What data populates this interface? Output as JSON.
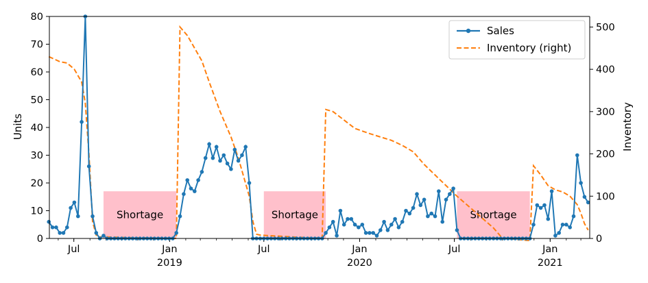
{
  "chart_data": {
    "type": "line",
    "x_axis": {
      "ticks": [
        {
          "date": "2018-07-01",
          "label": "Jul"
        },
        {
          "date": "2019-01-01",
          "label": "Jan",
          "year": "2019"
        },
        {
          "date": "2019-07-01",
          "label": "Jul"
        },
        {
          "date": "2020-01-01",
          "label": "Jan",
          "year": "2020"
        },
        {
          "date": "2020-07-01",
          "label": "Jul"
        },
        {
          "date": "2021-01-01",
          "label": "Jan",
          "year": "2021"
        }
      ],
      "year_labels": [
        "2019",
        "2020",
        "2021"
      ],
      "range": [
        "2018-05-15",
        "2021-03-01"
      ]
    },
    "y_left": {
      "label": "Units",
      "ticks": [
        0,
        10,
        20,
        30,
        40,
        50,
        60,
        70,
        80
      ],
      "ylim": [
        0,
        80
      ]
    },
    "y_right": {
      "label": "Inventory",
      "ticks": [
        0,
        100,
        200,
        300,
        400,
        500
      ],
      "ylim": [
        0,
        525
      ]
    },
    "legend": {
      "placement": "top-right",
      "entries": [
        "Sales",
        "Inventory (right)"
      ]
    },
    "colors": {
      "sales": "#1f77b4",
      "inventory": "#ff7f0e",
      "shortage": "#ffc0cb",
      "shortage_text": "#e00000"
    },
    "shortage_label": "Shortage",
    "shortage_periods": [
      {
        "start": "2018-08-27",
        "end": "2019-01-14",
        "value": 17
      },
      {
        "start": "2019-07-01",
        "end": "2019-10-28",
        "value": 17
      },
      {
        "start": "2020-07-06",
        "end": "2020-11-23",
        "value": 17
      }
    ],
    "series": [
      {
        "name": "Sales",
        "style": "solid-markers",
        "points": [
          [
            "2018-05-14",
            6
          ],
          [
            "2018-05-21",
            4
          ],
          [
            "2018-05-28",
            4
          ],
          [
            "2018-06-04",
            2
          ],
          [
            "2018-06-11",
            2
          ],
          [
            "2018-06-18",
            4
          ],
          [
            "2018-06-25",
            11
          ],
          [
            "2018-07-02",
            13
          ],
          [
            "2018-07-09",
            8
          ],
          [
            "2018-07-16",
            42
          ],
          [
            "2018-07-23",
            80
          ],
          [
            "2018-07-30",
            26
          ],
          [
            "2018-08-06",
            8
          ],
          [
            "2018-08-13",
            2
          ],
          [
            "2018-08-20",
            0
          ],
          [
            "2018-08-27",
            1
          ],
          [
            "2018-09-03",
            0
          ],
          [
            "2018-09-10",
            0
          ],
          [
            "2018-09-17",
            0
          ],
          [
            "2018-09-24",
            0
          ],
          [
            "2018-10-01",
            0
          ],
          [
            "2018-10-08",
            0
          ],
          [
            "2018-10-15",
            0
          ],
          [
            "2018-10-22",
            0
          ],
          [
            "2018-10-29",
            0
          ],
          [
            "2018-11-05",
            0
          ],
          [
            "2018-11-12",
            0
          ],
          [
            "2018-11-19",
            0
          ],
          [
            "2018-11-26",
            0
          ],
          [
            "2018-12-03",
            0
          ],
          [
            "2018-12-10",
            0
          ],
          [
            "2018-12-17",
            0
          ],
          [
            "2018-12-24",
            0
          ],
          [
            "2018-12-31",
            0
          ],
          [
            "2019-01-07",
            0
          ],
          [
            "2019-01-14",
            2
          ],
          [
            "2019-01-21",
            8
          ],
          [
            "2019-01-28",
            16
          ],
          [
            "2019-02-04",
            21
          ],
          [
            "2019-02-11",
            18
          ],
          [
            "2019-02-18",
            17
          ],
          [
            "2019-02-25",
            21
          ],
          [
            "2019-03-04",
            24
          ],
          [
            "2019-03-11",
            29
          ],
          [
            "2019-03-18",
            34
          ],
          [
            "2019-03-25",
            29
          ],
          [
            "2019-04-01",
            33
          ],
          [
            "2019-04-08",
            28
          ],
          [
            "2019-04-15",
            30
          ],
          [
            "2019-04-22",
            27
          ],
          [
            "2019-04-29",
            25
          ],
          [
            "2019-05-06",
            32
          ],
          [
            "2019-05-13",
            28
          ],
          [
            "2019-05-20",
            30
          ],
          [
            "2019-05-27",
            33
          ],
          [
            "2019-06-03",
            20
          ],
          [
            "2019-06-10",
            0
          ],
          [
            "2019-06-17",
            0
          ],
          [
            "2019-06-24",
            0
          ],
          [
            "2019-07-01",
            0
          ],
          [
            "2019-07-08",
            0
          ],
          [
            "2019-07-15",
            0
          ],
          [
            "2019-07-22",
            0
          ],
          [
            "2019-07-29",
            0
          ],
          [
            "2019-08-05",
            0
          ],
          [
            "2019-08-12",
            0
          ],
          [
            "2019-08-19",
            0
          ],
          [
            "2019-08-26",
            0
          ],
          [
            "2019-09-02",
            0
          ],
          [
            "2019-09-09",
            0
          ],
          [
            "2019-09-16",
            0
          ],
          [
            "2019-09-23",
            0
          ],
          [
            "2019-09-30",
            0
          ],
          [
            "2019-10-07",
            0
          ],
          [
            "2019-10-14",
            0
          ],
          [
            "2019-10-21",
            0
          ],
          [
            "2019-10-28",
            2
          ],
          [
            "2019-11-04",
            4
          ],
          [
            "2019-11-11",
            6
          ],
          [
            "2019-11-18",
            1
          ],
          [
            "2019-11-25",
            10
          ],
          [
            "2019-12-02",
            5
          ],
          [
            "2019-12-09",
            7
          ],
          [
            "2019-12-16",
            7
          ],
          [
            "2019-12-23",
            5
          ],
          [
            "2019-12-30",
            4
          ],
          [
            "2020-01-06",
            5
          ],
          [
            "2020-01-13",
            2
          ],
          [
            "2020-01-20",
            2
          ],
          [
            "2020-01-27",
            2
          ],
          [
            "2020-02-03",
            1
          ],
          [
            "2020-02-10",
            3
          ],
          [
            "2020-02-17",
            6
          ],
          [
            "2020-02-24",
            3
          ],
          [
            "2020-03-02",
            5
          ],
          [
            "2020-03-09",
            7
          ],
          [
            "2020-03-16",
            4
          ],
          [
            "2020-03-23",
            6
          ],
          [
            "2020-03-30",
            10
          ],
          [
            "2020-04-06",
            9
          ],
          [
            "2020-04-13",
            11
          ],
          [
            "2020-04-20",
            16
          ],
          [
            "2020-04-27",
            12
          ],
          [
            "2020-05-04",
            14
          ],
          [
            "2020-05-11",
            8
          ],
          [
            "2020-05-18",
            9
          ],
          [
            "2020-05-25",
            8
          ],
          [
            "2020-06-01",
            17
          ],
          [
            "2020-06-08",
            6
          ],
          [
            "2020-06-15",
            14
          ],
          [
            "2020-06-22",
            16
          ],
          [
            "2020-06-29",
            18
          ],
          [
            "2020-07-06",
            3
          ],
          [
            "2020-07-13",
            0
          ],
          [
            "2020-07-20",
            0
          ],
          [
            "2020-07-27",
            0
          ],
          [
            "2020-08-03",
            0
          ],
          [
            "2020-08-10",
            0
          ],
          [
            "2020-08-17",
            0
          ],
          [
            "2020-08-24",
            0
          ],
          [
            "2020-08-31",
            0
          ],
          [
            "2020-09-07",
            0
          ],
          [
            "2020-09-14",
            0
          ],
          [
            "2020-09-21",
            0
          ],
          [
            "2020-09-28",
            0
          ],
          [
            "2020-10-05",
            0
          ],
          [
            "2020-10-12",
            0
          ],
          [
            "2020-10-19",
            0
          ],
          [
            "2020-10-26",
            0
          ],
          [
            "2020-11-02",
            0
          ],
          [
            "2020-11-09",
            0
          ],
          [
            "2020-11-16",
            0
          ],
          [
            "2020-11-23",
            0
          ],
          [
            "2020-11-30",
            5
          ],
          [
            "2020-12-07",
            12
          ],
          [
            "2020-12-14",
            11
          ],
          [
            "2020-12-21",
            12
          ],
          [
            "2020-12-28",
            7
          ],
          [
            "2021-01-04",
            17
          ],
          [
            "2021-01-11",
            1
          ],
          [
            "2021-01-18",
            2
          ],
          [
            "2021-01-25",
            5
          ],
          [
            "2021-02-01",
            5
          ],
          [
            "2021-02-08",
            4
          ],
          [
            "2021-02-15",
            8
          ],
          [
            "2021-02-22",
            30
          ],
          [
            "2021-03-01",
            20
          ],
          [
            "2021-03-08",
            15
          ],
          [
            "2021-03-15",
            13
          ]
        ]
      },
      {
        "name": "Inventory (right)",
        "style": "dashed",
        "axis": "right",
        "points": [
          [
            "2018-05-14",
            430
          ],
          [
            "2018-06-04",
            418
          ],
          [
            "2018-06-18",
            415
          ],
          [
            "2018-07-02",
            400
          ],
          [
            "2018-07-16",
            370
          ],
          [
            "2018-07-23",
            320
          ],
          [
            "2018-07-30",
            200
          ],
          [
            "2018-08-06",
            40
          ],
          [
            "2018-08-13",
            8
          ],
          [
            "2018-08-20",
            4
          ],
          [
            "2018-09-17",
            3
          ],
          [
            "2018-10-15",
            2
          ],
          [
            "2018-12-17",
            1
          ],
          [
            "2019-01-14",
            0
          ],
          [
            "2019-01-21",
            500
          ],
          [
            "2019-02-04",
            480
          ],
          [
            "2019-02-18",
            450
          ],
          [
            "2019-03-04",
            420
          ],
          [
            "2019-03-18",
            370
          ],
          [
            "2019-04-08",
            300
          ],
          [
            "2019-04-29",
            240
          ],
          [
            "2019-05-13",
            190
          ],
          [
            "2019-05-27",
            130
          ],
          [
            "2019-06-03",
            100
          ],
          [
            "2019-06-10",
            40
          ],
          [
            "2019-06-17",
            10
          ],
          [
            "2019-06-24",
            8
          ],
          [
            "2019-07-08",
            7
          ],
          [
            "2019-08-05",
            5
          ],
          [
            "2019-09-02",
            3
          ],
          [
            "2019-10-21",
            1
          ],
          [
            "2019-10-28",
            305
          ],
          [
            "2019-11-11",
            300
          ],
          [
            "2019-12-02",
            280
          ],
          [
            "2019-12-23",
            260
          ],
          [
            "2020-01-20",
            248
          ],
          [
            "2020-02-10",
            240
          ],
          [
            "2020-03-02",
            232
          ],
          [
            "2020-03-23",
            220
          ],
          [
            "2020-04-13",
            205
          ],
          [
            "2020-05-04",
            175
          ],
          [
            "2020-05-25",
            150
          ],
          [
            "2020-06-15",
            125
          ],
          [
            "2020-07-06",
            100
          ],
          [
            "2020-07-20",
            85
          ],
          [
            "2020-08-03",
            70
          ],
          [
            "2020-08-17",
            55
          ],
          [
            "2020-08-31",
            40
          ],
          [
            "2020-09-14",
            25
          ],
          [
            "2020-09-28",
            5
          ],
          [
            "2020-10-05",
            0
          ],
          [
            "2020-11-23",
            -5
          ],
          [
            "2020-11-30",
            172
          ],
          [
            "2020-12-14",
            150
          ],
          [
            "2020-12-28",
            125
          ],
          [
            "2021-01-11",
            115
          ],
          [
            "2021-01-25",
            110
          ],
          [
            "2021-02-08",
            100
          ],
          [
            "2021-02-22",
            80
          ],
          [
            "2021-03-01",
            60
          ],
          [
            "2021-03-08",
            35
          ],
          [
            "2021-03-15",
            20
          ]
        ]
      }
    ]
  }
}
